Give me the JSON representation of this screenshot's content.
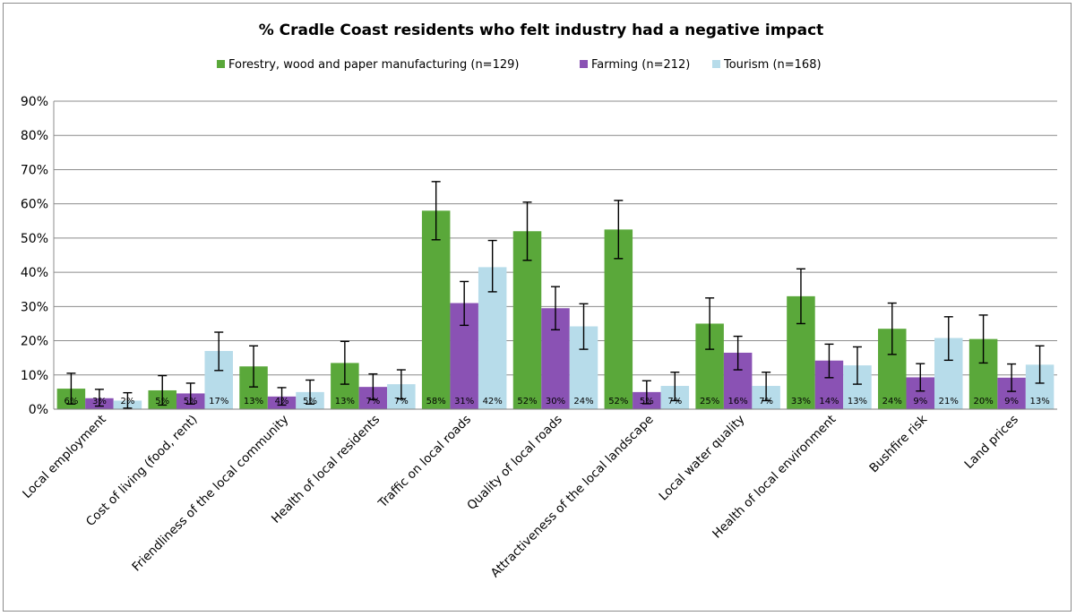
{
  "chart_data": {
    "type": "bar",
    "title": "% Cradle Coast residents who felt industry had a negative impact",
    "xlabel": "",
    "ylabel": "",
    "ylim": [
      0,
      90
    ],
    "ytick_step": 10,
    "ytick_suffix": "%",
    "grid": true,
    "legend_position": "top",
    "categories": [
      "Local employment",
      "Cost of living (food, rent)",
      "Friendliness of the local community",
      "Health of local residents",
      "Traffic on local roads",
      "Quality of local roads",
      "Attractiveness of the local landscape",
      "Local water quality",
      "Health of local environment",
      "Bushfire risk",
      "Land prices"
    ],
    "series": [
      {
        "name": "Forestry, wood and paper manufacturing (n=129)",
        "color": "#5aa83a",
        "values": [
          6,
          5.5,
          12.5,
          13.5,
          58,
          52,
          52.5,
          25,
          33,
          23.5,
          20.5
        ],
        "labels": [
          "6%",
          "5%",
          "13%",
          "13%",
          "58%",
          "52%",
          "52%",
          "25%",
          "33%",
          "24%",
          "20%"
        ],
        "error_low": [
          1.5,
          1.2,
          6.5,
          7.3,
          49.5,
          43.5,
          44,
          17.5,
          25,
          16,
          13.5
        ],
        "error_high": [
          10.5,
          9.8,
          18.5,
          19.8,
          66.5,
          60.5,
          61,
          32.5,
          41,
          31,
          27.5
        ]
      },
      {
        "name": "Farming (n=212)",
        "color": "#8a52b4",
        "values": [
          3.2,
          4.6,
          3.7,
          6.5,
          31,
          29.5,
          5,
          16.5,
          14.2,
          9.3,
          9.2
        ],
        "labels": [
          "3%",
          "5%",
          "4%",
          "7%",
          "31%",
          "30%",
          "5%",
          "16%",
          "14%",
          "9%",
          "9%"
        ],
        "error_low": [
          0.9,
          1.5,
          1.2,
          2.8,
          24.5,
          23.2,
          1.6,
          11.5,
          9.2,
          5.3,
          5.2
        ],
        "error_high": [
          5.8,
          7.6,
          6.3,
          10.3,
          37.3,
          35.8,
          8.3,
          21.3,
          19,
          13.3,
          13.2
        ]
      },
      {
        "name": "Tourism (n=168)",
        "color": "#b7dcea",
        "values": [
          2.5,
          17,
          5,
          7.3,
          41.5,
          24.2,
          6.8,
          6.8,
          12.8,
          20.8,
          13
        ],
        "labels": [
          "2%",
          "17%",
          "5%",
          "7%",
          "42%",
          "24%",
          "7%",
          "7%",
          "13%",
          "21%",
          "13%"
        ],
        "error_low": [
          0.3,
          11.3,
          1.5,
          3,
          34.3,
          17.5,
          2.5,
          2.5,
          7.3,
          14.3,
          7.6
        ],
        "error_high": [
          4.8,
          22.5,
          8.5,
          11.5,
          49.3,
          30.8,
          10.8,
          10.8,
          18.2,
          27,
          18.5
        ]
      }
    ]
  }
}
